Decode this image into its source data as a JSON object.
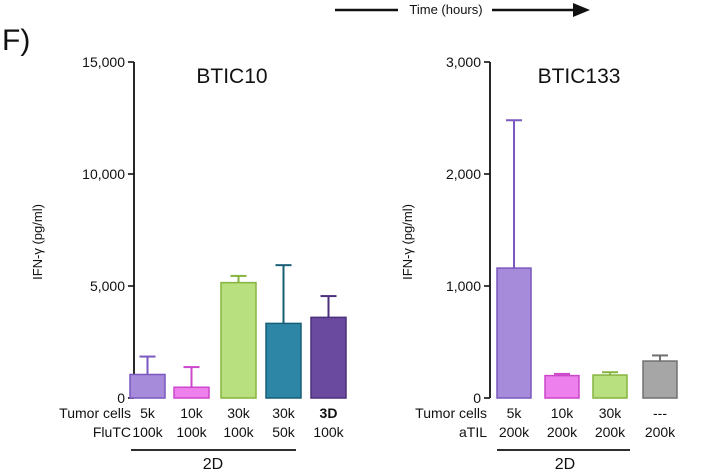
{
  "panel_label": "F)",
  "header_text": "Time (hours)",
  "chart_data": [
    {
      "type": "bar",
      "title": "BTIC10",
      "ylabel": "IFN-γ (pg/ml)",
      "ylim": [
        0,
        15000
      ],
      "yticks": [
        0,
        5000,
        10000,
        15000
      ],
      "ytick_labels": [
        "0",
        "5,000",
        "10,000",
        "15,000"
      ],
      "row_labels": [
        "Tumor cells",
        "FluTC"
      ],
      "tumor_cells": [
        "5k",
        "10k",
        "30k",
        "30k",
        "3D"
      ],
      "effector_cells": [
        "100k",
        "100k",
        "100k",
        "50k",
        "100k"
      ],
      "bold_categories": [
        4
      ],
      "group_label": "2D",
      "values": [
        1050,
        480,
        5150,
        3330,
        3600
      ],
      "errors": [
        800,
        900,
        300,
        2600,
        950
      ],
      "colors": [
        "#a58bd9",
        "#ee80ee",
        "#b9e07f",
        "#2e86a7",
        "#6a4a9e"
      ],
      "edge_colors": [
        "#7b57c0",
        "#cc47cc",
        "#86b43e",
        "#175e77",
        "#4c2f7d"
      ]
    },
    {
      "type": "bar",
      "title": "BTIC133",
      "ylabel": "IFN-γ (pg/ml)",
      "ylim": [
        0,
        3000
      ],
      "yticks": [
        0,
        1000,
        2000,
        3000
      ],
      "ytick_labels": [
        "0",
        "1,000",
        "2,000",
        "3,000"
      ],
      "row_labels": [
        "Tumor cells",
        "aTIL"
      ],
      "tumor_cells": [
        "5k",
        "10k",
        "30k",
        "---"
      ],
      "effector_cells": [
        "200k",
        "200k",
        "200k",
        "200k"
      ],
      "bold_categories": [],
      "group_label": "2D",
      "values": [
        1160,
        200,
        205,
        330
      ],
      "errors": [
        1320,
        15,
        25,
        50
      ],
      "colors": [
        "#a58bd9",
        "#ee80ee",
        "#b9e07f",
        "#a6a6a6"
      ],
      "edge_colors": [
        "#7b57c0",
        "#cc47cc",
        "#86b43e",
        "#707070"
      ]
    }
  ]
}
